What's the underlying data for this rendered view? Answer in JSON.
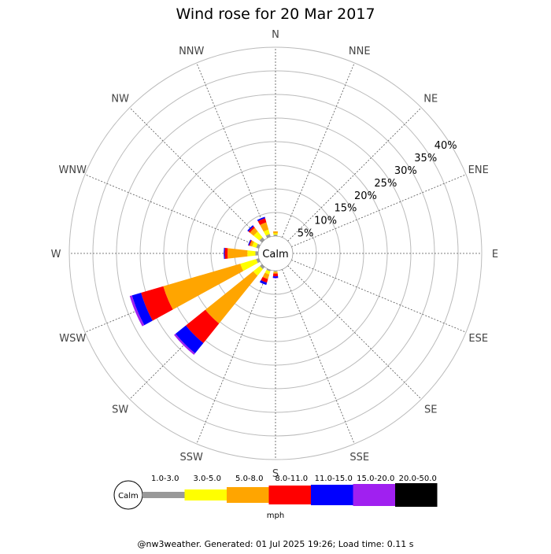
{
  "chart_data": {
    "type": "wind-rose",
    "title": "Wind rose for 20 Mar 2017",
    "directions": [
      "N",
      "NNE",
      "NE",
      "ENE",
      "E",
      "ESE",
      "SE",
      "SSE",
      "S",
      "SSW",
      "SW",
      "WSW",
      "W",
      "WNW",
      "NW",
      "NNW"
    ],
    "radial_ticks": [
      "5%",
      "10%",
      "15%",
      "20%",
      "25%",
      "30%",
      "35%",
      "40%"
    ],
    "radial_max_percent": 40,
    "calm_label": "Calm",
    "speed_unit": "mph",
    "speed_bins": [
      {
        "label": "1.0-3.0",
        "color": "#999999"
      },
      {
        "label": "3.0-5.0",
        "color": "#ffff00"
      },
      {
        "label": "5.0-8.0",
        "color": "#ffa500"
      },
      {
        "label": "8.0-11.0",
        "color": "#ff0000"
      },
      {
        "label": "11.0-15.0",
        "color": "#0000ff"
      },
      {
        "label": "15.0-20.0",
        "color": "#a020f0"
      },
      {
        "label": "20.0-50.0",
        "color": "#000000"
      }
    ],
    "series": [
      {
        "direction": "N",
        "values": [
          0.3,
          0.3,
          0.4,
          0,
          0,
          0,
          0
        ]
      },
      {
        "direction": "NNE",
        "values": [
          0,
          0,
          0,
          0,
          0,
          0,
          0
        ]
      },
      {
        "direction": "NE",
        "values": [
          0,
          0,
          0,
          0,
          0,
          0,
          0
        ]
      },
      {
        "direction": "ENE",
        "values": [
          0,
          0,
          0,
          0,
          0,
          0,
          0
        ]
      },
      {
        "direction": "E",
        "values": [
          0,
          0,
          0,
          0,
          0,
          0,
          0
        ]
      },
      {
        "direction": "ESE",
        "values": [
          0,
          0,
          0,
          0,
          0,
          0,
          0
        ]
      },
      {
        "direction": "SE",
        "values": [
          0,
          0,
          0,
          0,
          0,
          0,
          0
        ]
      },
      {
        "direction": "SSE",
        "values": [
          0,
          0,
          0,
          0,
          0,
          0,
          0
        ]
      },
      {
        "direction": "S",
        "values": [
          0.2,
          0.1,
          0.3,
          0.6,
          0.3,
          0.1,
          0
        ]
      },
      {
        "direction": "SSW",
        "values": [
          0.3,
          0.7,
          1.0,
          0.8,
          0.5,
          0,
          0
        ]
      },
      {
        "direction": "SW",
        "values": [
          0.6,
          1.8,
          13.0,
          5.3,
          2.8,
          0.4,
          0
        ]
      },
      {
        "direction": "WSW",
        "values": [
          0.6,
          3.5,
          17.0,
          4.9,
          2.0,
          0.5,
          0
        ]
      },
      {
        "direction": "W",
        "values": [
          0.6,
          1.7,
          4.2,
          0.6,
          0.2,
          0,
          0
        ]
      },
      {
        "direction": "WNW",
        "values": [
          0.6,
          0.9,
          0.5,
          0.2,
          0.2,
          0,
          0
        ]
      },
      {
        "direction": "NW",
        "values": [
          0.7,
          1.6,
          1.0,
          0.4,
          0.3,
          0,
          0
        ]
      },
      {
        "direction": "NNW",
        "values": [
          0.6,
          1.0,
          1.6,
          0.9,
          0.3,
          0,
          0
        ]
      }
    ]
  },
  "footer": "@nw3weather. Generated: 01 Jul 2025 19:26; Load time: 0.11 s"
}
